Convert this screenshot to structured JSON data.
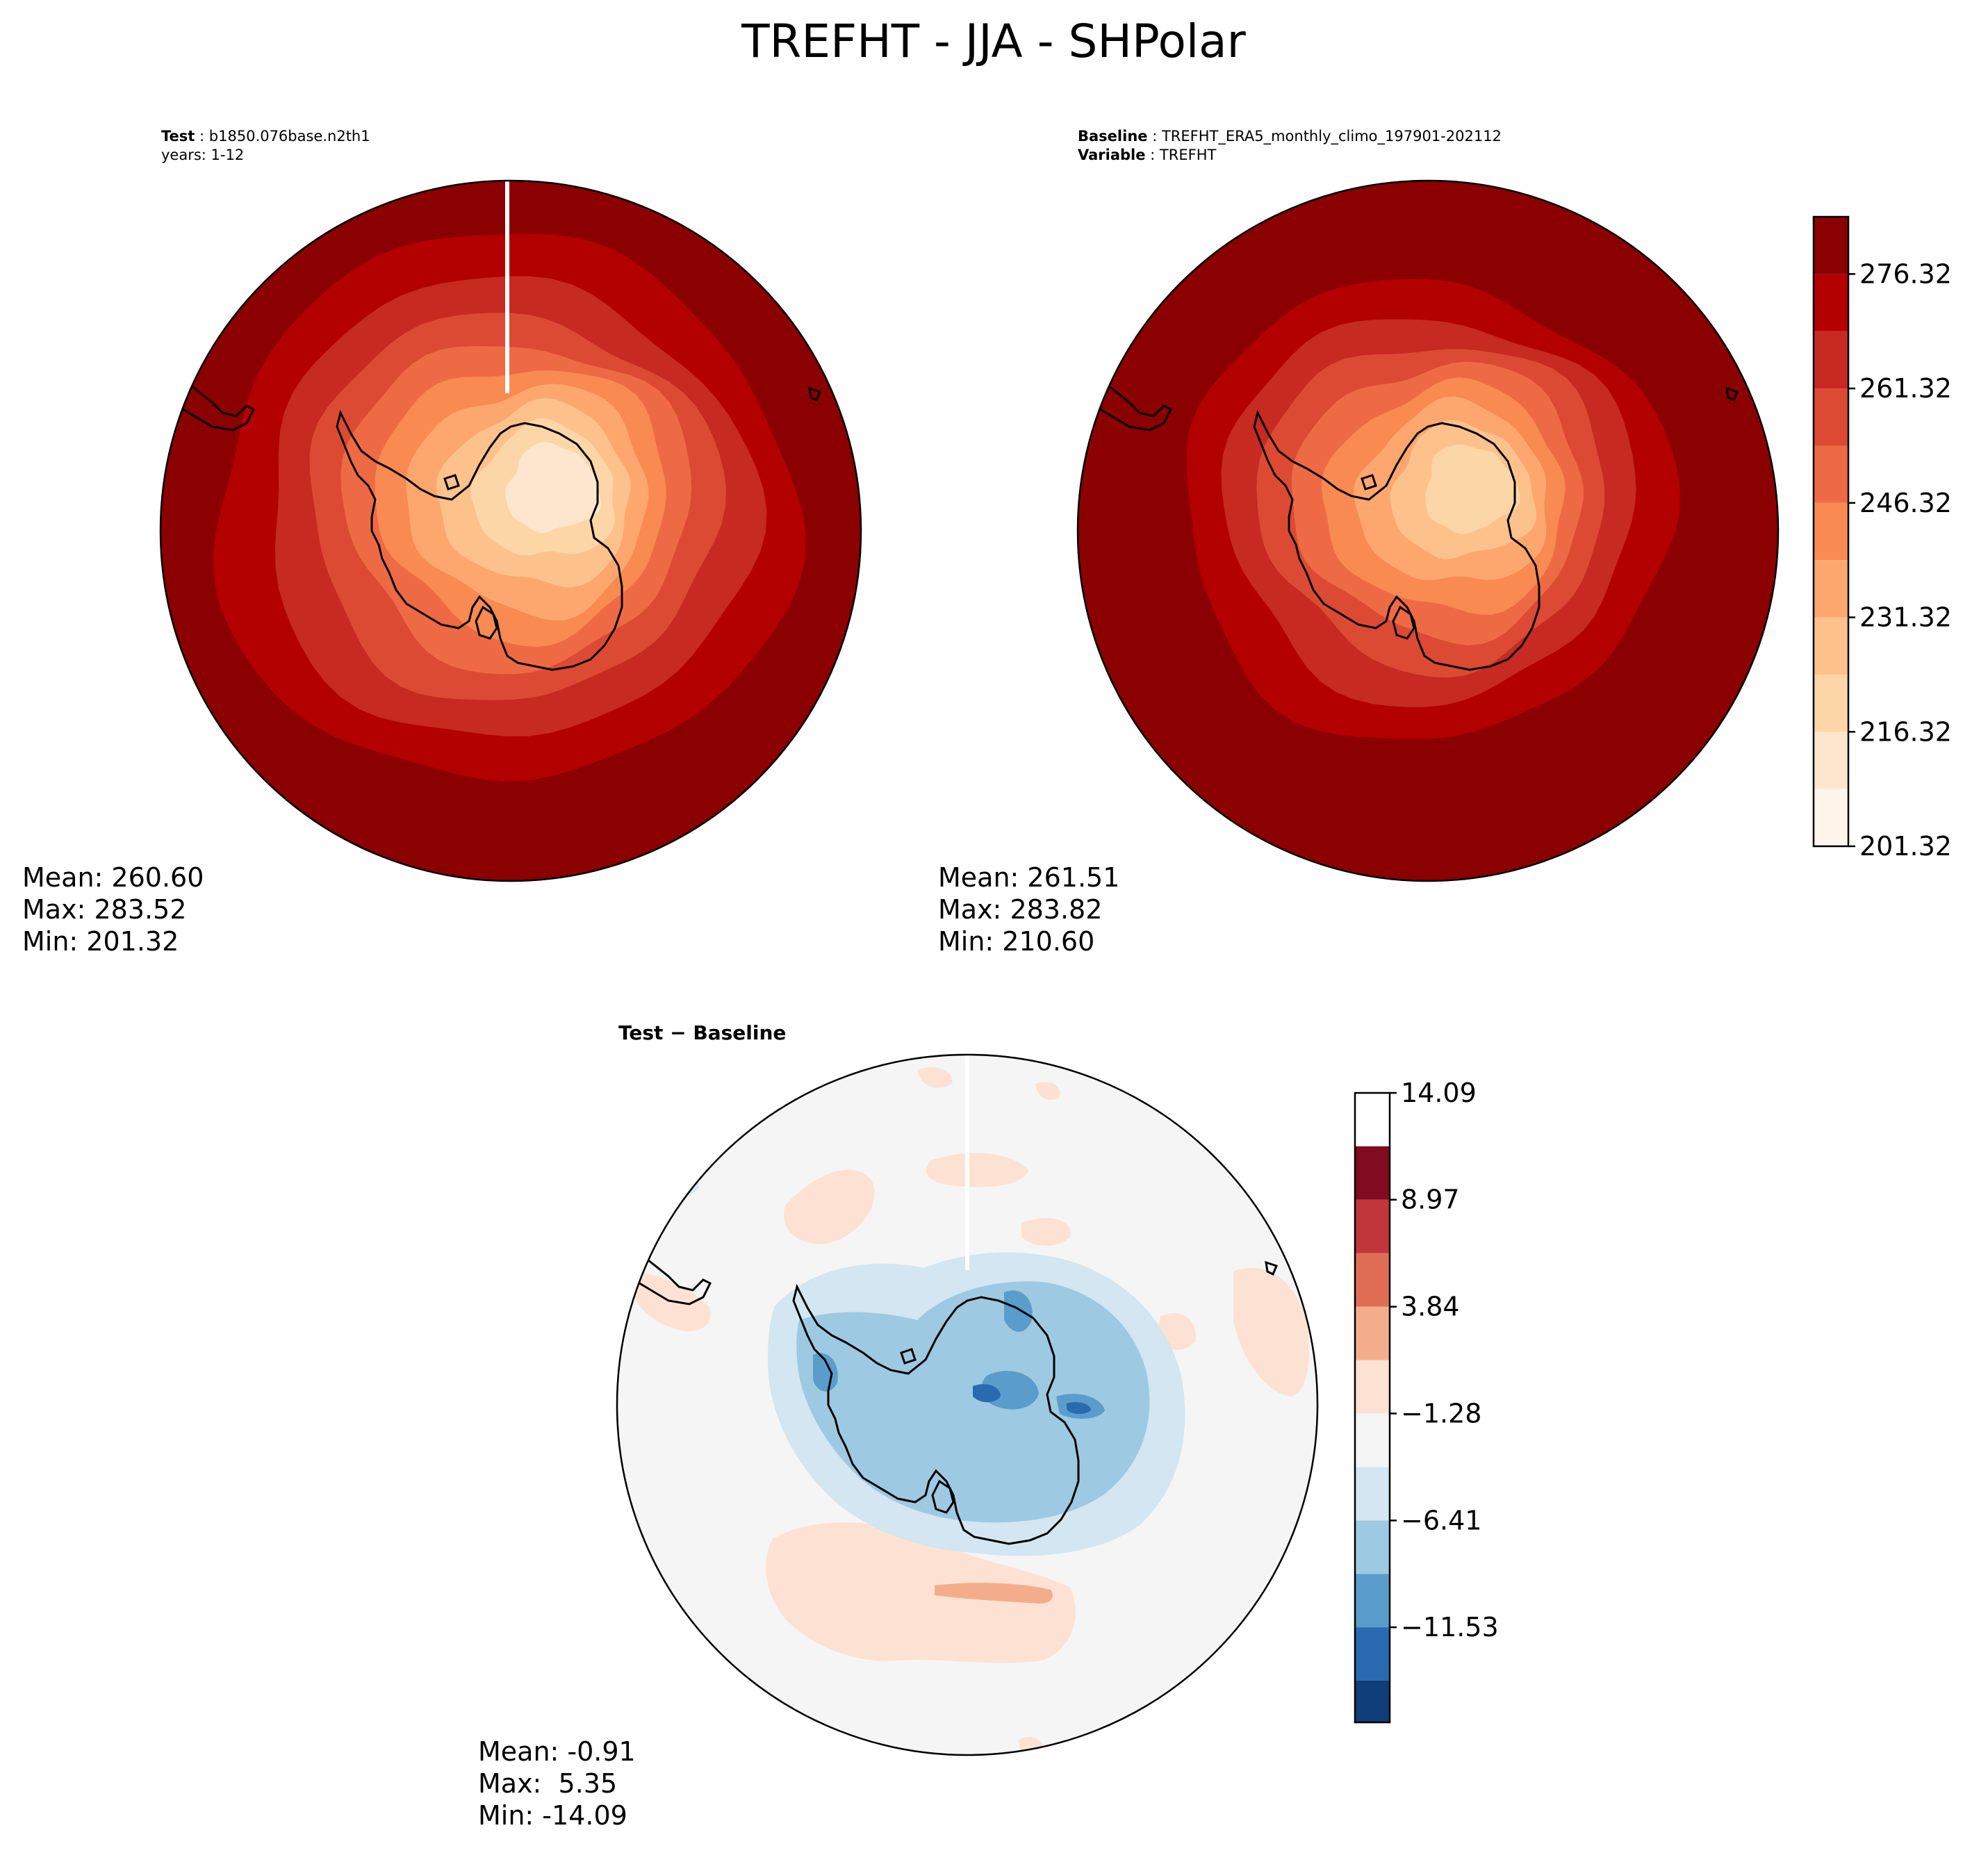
{
  "figure": {
    "title": "TREFHT - JJA - SHPolar"
  },
  "chart_data": [
    {
      "type": "heatmap",
      "panel": "test",
      "projection": "south-polar-stereographic",
      "header": {
        "line1_key": "Test",
        "line1_value": "b1850.076base.n2th1",
        "line2": "years: 1-12"
      },
      "stats": {
        "mean": "Mean: 260.60",
        "max": "Max: 283.52",
        "min": "Min: 201.32"
      },
      "values": {
        "mean": 260.6,
        "max": 283.52,
        "min": 201.32
      },
      "contour_bands_from_center": [
        216.32,
        223.82,
        231.32,
        238.82,
        246.32,
        253.82,
        261.32,
        268.82,
        276.32
      ]
    },
    {
      "type": "heatmap",
      "panel": "baseline",
      "projection": "south-polar-stereographic",
      "header": {
        "line1_key": "Baseline",
        "line1_value": "TREFHT_ERA5_monthly_climo_197901-202112",
        "line2_key": "Variable",
        "line2_value": "TREFHT"
      },
      "stats": {
        "mean": "Mean: 261.51",
        "max": "Max: 283.82",
        "min": "Min: 210.60"
      },
      "values": {
        "mean": 261.51,
        "max": 283.82,
        "min": 210.6
      },
      "contour_bands_from_center": [
        223.82,
        231.32,
        238.82,
        246.32,
        253.82,
        261.32,
        268.82,
        276.32,
        283.82
      ]
    },
    {
      "type": "heatmap",
      "panel": "difference",
      "projection": "south-polar-stereographic",
      "title": "Test − Baseline",
      "stats": {
        "mean": "Mean: -0.91",
        "max": "Max:  5.35",
        "min": "Min: -14.09"
      },
      "values": {
        "mean": -0.91,
        "max": 5.35,
        "min": -14.09
      }
    }
  ],
  "colorbars": {
    "absolute": {
      "levels": [
        201.32,
        208.82,
        216.32,
        223.82,
        231.32,
        238.82,
        246.32,
        253.82,
        261.32,
        268.82,
        276.32,
        283.82
      ],
      "tick_labels": [
        "201.32",
        "216.32",
        "231.32",
        "246.32",
        "261.32",
        "276.32"
      ],
      "tick_values": [
        201.32,
        216.32,
        231.32,
        246.32,
        261.32,
        276.32
      ],
      "colors": [
        "#fff5eb",
        "#fee6ce",
        "#fdd6a8",
        "#fdc28c",
        "#fda76f",
        "#f88a52",
        "#ee6a44",
        "#dd4a33",
        "#c62a21",
        "#b30000",
        "#8b0000"
      ]
    },
    "difference": {
      "levels": [
        -16.09,
        -14.09,
        -11.53,
        -8.97,
        -6.41,
        -3.84,
        -1.28,
        1.28,
        3.84,
        6.41,
        8.97,
        11.53,
        14.09
      ],
      "tick_labels": [
        "−11.53",
        "−6.41",
        "−1.28",
        "3.84",
        "8.97",
        "14.09"
      ],
      "tick_values": [
        -11.53,
        -6.41,
        -1.28,
        3.84,
        8.97,
        14.09
      ],
      "colors": [
        "#0f3f78",
        "#2a6ab0",
        "#5a9ccb",
        "#9ec9e2",
        "#d3e6f1",
        "#f5f5f5",
        "#fde2d3",
        "#f4ad8b",
        "#df6e55",
        "#c1363a",
        "#810b20"
      ]
    }
  }
}
